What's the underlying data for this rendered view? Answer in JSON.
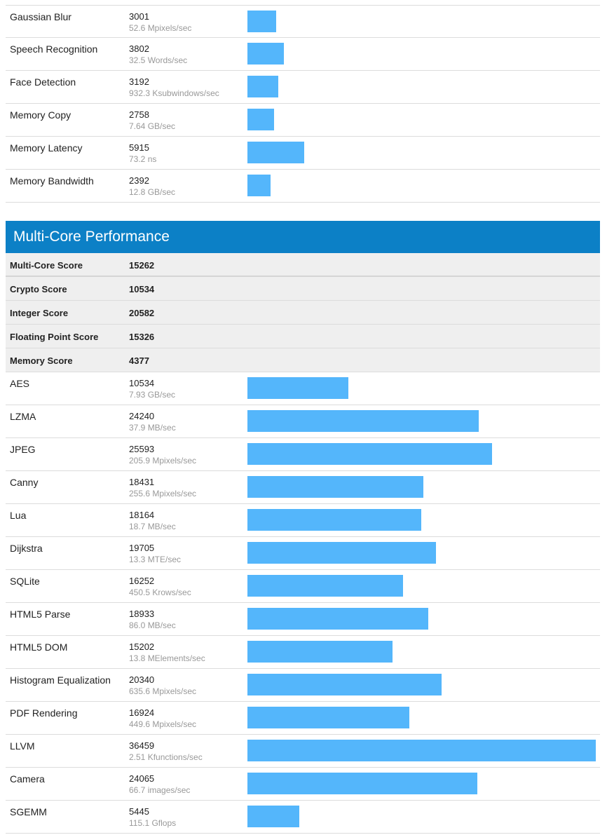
{
  "single_core_tail": [
    {
      "name": "Gaussian Blur",
      "score": "3001",
      "unit": "52.6 Mpixels/sec",
      "value": 3001
    },
    {
      "name": "Speech Recognition",
      "score": "3802",
      "unit": "32.5 Words/sec",
      "value": 3802
    },
    {
      "name": "Face Detection",
      "score": "3192",
      "unit": "932.3 Ksubwindows/sec",
      "value": 3192
    },
    {
      "name": "Memory Copy",
      "score": "2758",
      "unit": "7.64 GB/sec",
      "value": 2758
    },
    {
      "name": "Memory Latency",
      "score": "5915",
      "unit": "73.2 ns",
      "value": 5915
    },
    {
      "name": "Memory Bandwidth",
      "score": "2392",
      "unit": "12.8 GB/sec",
      "value": 2392
    }
  ],
  "multi_core": {
    "title": "Multi-Core Performance",
    "summary": [
      {
        "name": "Multi-Core Score",
        "score": "15262"
      },
      {
        "name": "Crypto Score",
        "score": "10534"
      },
      {
        "name": "Integer Score",
        "score": "20582"
      },
      {
        "name": "Floating Point Score",
        "score": "15326"
      },
      {
        "name": "Memory Score",
        "score": "4377"
      }
    ],
    "rows": [
      {
        "name": "AES",
        "score": "10534",
        "unit": "7.93 GB/sec",
        "value": 10534
      },
      {
        "name": "LZMA",
        "score": "24240",
        "unit": "37.9 MB/sec",
        "value": 24240
      },
      {
        "name": "JPEG",
        "score": "25593",
        "unit": "205.9 Mpixels/sec",
        "value": 25593
      },
      {
        "name": "Canny",
        "score": "18431",
        "unit": "255.6 Mpixels/sec",
        "value": 18431
      },
      {
        "name": "Lua",
        "score": "18164",
        "unit": "18.7 MB/sec",
        "value": 18164
      },
      {
        "name": "Dijkstra",
        "score": "19705",
        "unit": "13.3 MTE/sec",
        "value": 19705
      },
      {
        "name": "SQLite",
        "score": "16252",
        "unit": "450.5 Krows/sec",
        "value": 16252
      },
      {
        "name": "HTML5 Parse",
        "score": "18933",
        "unit": "86.0 MB/sec",
        "value": 18933
      },
      {
        "name": "HTML5 DOM",
        "score": "15202",
        "unit": "13.8 MElements/sec",
        "value": 15202
      },
      {
        "name": "Histogram Equalization",
        "score": "20340",
        "unit": "635.6 Mpixels/sec",
        "value": 20340
      },
      {
        "name": "PDF Rendering",
        "score": "16924",
        "unit": "449.6 Mpixels/sec",
        "value": 16924
      },
      {
        "name": "LLVM",
        "score": "36459",
        "unit": "2.51 Kfunctions/sec",
        "value": 36459
      },
      {
        "name": "Camera",
        "score": "24065",
        "unit": "66.7 images/sec",
        "value": 24065
      },
      {
        "name": "SGEMM",
        "score": "5445",
        "unit": "115.1 Gflops",
        "value": 5445
      }
    ]
  },
  "colors": {
    "bar": "#54b6fb",
    "header": "#0c80c6"
  }
}
